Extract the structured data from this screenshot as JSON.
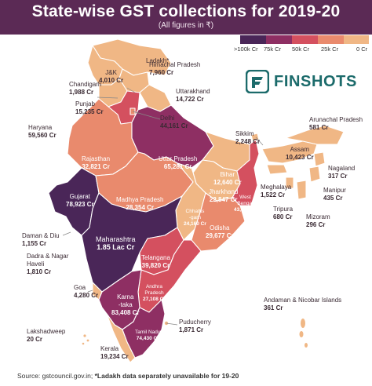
{
  "title": "State-wise GST collections for 2019-20",
  "subtitle": "(All figures in ₹)",
  "brand": {
    "name": "FINSHOTS",
    "color": "#1c6b6b",
    "icon": "finshots-logo-icon"
  },
  "legend": [
    {
      "label": ">100k Cr",
      "color": "#4a2658"
    },
    {
      "label": "75k Cr",
      "color": "#8e2f63"
    },
    {
      "label": "50k Cr",
      "color": "#d4505f"
    },
    {
      "label": "25k Cr",
      "color": "#e98a6d"
    },
    {
      "label": "0 Cr",
      "color": "#f0b785"
    }
  ],
  "states": {
    "ladakh": {
      "name": "Ladakh*",
      "value": ""
    },
    "jk": {
      "name": "J&K",
      "value": "4,010 Cr"
    },
    "himachal": {
      "name": "Himachal Pradesh",
      "value": "7,960 Cr"
    },
    "chandigarh": {
      "name": "Chandigarh",
      "value": "1,988 Cr"
    },
    "punjab": {
      "name": "Punjab",
      "value": "15,235 Cr"
    },
    "uttarakhand": {
      "name": "Uttarakhand",
      "value": "14,722 Cr"
    },
    "delhi": {
      "name": "Delhi",
      "value": "44,161 Cr"
    },
    "haryana": {
      "name": "Haryana",
      "value": "59,560 Cr"
    },
    "rajasthan": {
      "name": "Rajasthan",
      "value": "32,821 Cr"
    },
    "up": {
      "name": "Uttar Pradesh",
      "value": "65,281 Cr"
    },
    "gujarat": {
      "name": "Gujarat",
      "value": "78,923 Cr"
    },
    "mp": {
      "name": "Madhya Pradesh",
      "value": "28,354 Cr"
    },
    "bihar": {
      "name": "Bihar",
      "value": "12,640 Cr"
    },
    "jharkhand": {
      "name": "Jharkhand",
      "value": "22,847 Cr"
    },
    "chhattisgarh": {
      "name": "Chhattis\n-garh",
      "value": "24,160 Cr"
    },
    "wb": {
      "name": "West\nBengal",
      "value": "43,386 Cr"
    },
    "odisha": {
      "name": "Odisha",
      "value": "29,677 Cr"
    },
    "maharashtra": {
      "name": "Maharashtra",
      "value": "1.85 Lac Cr"
    },
    "telangana": {
      "name": "Telangana",
      "value": "39,820 Cr"
    },
    "ap": {
      "name": "Andhra\nPradesh",
      "value": "27,108 Cr"
    },
    "karnataka": {
      "name": "Karna\n-taka",
      "value": "83,408 Cr"
    },
    "tn": {
      "name": "Tamil Nadu",
      "value": "74,430 Cr"
    },
    "kerala": {
      "name": "Kerala",
      "value": "19,234 Cr"
    },
    "puducherry": {
      "name": "Puducherry",
      "value": "1,871 Cr"
    },
    "goa": {
      "name": "Goa",
      "value": "4,280 Cr"
    },
    "daman": {
      "name": "Daman & Diu",
      "value": "1,155 Cr"
    },
    "dadra": {
      "name": "Dadra & Nagar\nHaveli",
      "value": "1,810 Cr"
    },
    "lakshadweep": {
      "name": "Lakshadweep",
      "value": "20 Cr"
    },
    "sikkim": {
      "name": "Sikkim",
      "value": "2,248 Cr"
    },
    "assam": {
      "name": "Assam",
      "value": "10,423 Cr"
    },
    "arunachal": {
      "name": "Arunachal Pradesh",
      "value": "581 Cr"
    },
    "nagaland": {
      "name": "Nagaland",
      "value": "317 Cr"
    },
    "meghalaya": {
      "name": "Meghalaya",
      "value": "1,522 Cr"
    },
    "manipur": {
      "name": "Manipur",
      "value": "435 Cr"
    },
    "tripura": {
      "name": "Tripura",
      "value": "680 Cr"
    },
    "mizoram": {
      "name": "Mizoram",
      "value": "296 Cr"
    },
    "andaman": {
      "name": "Andaman & Nicobar Islands",
      "value": "361 Cr"
    }
  },
  "footer": {
    "source": "Source: gstcouncil.gov.in; ",
    "note": "*Ladakh data separately unavailable for 19-20"
  }
}
